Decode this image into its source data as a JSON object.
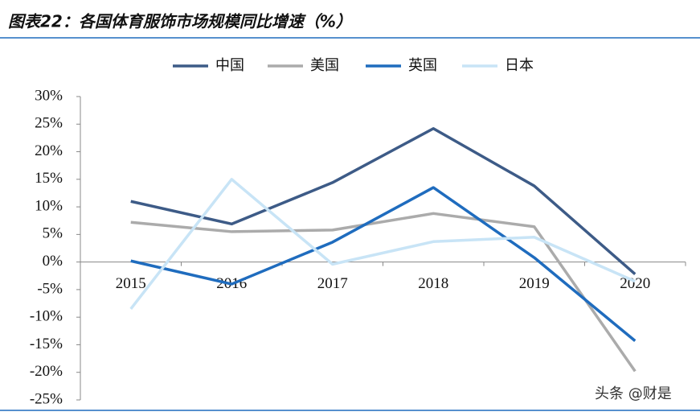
{
  "chart_data": {
    "type": "line",
    "title": "图表22：各国体育服饰市场规模同比增速（%）",
    "categories": [
      "2015",
      "2016",
      "2017",
      "2018",
      "2019",
      "2020"
    ],
    "series": [
      {
        "name": "中国",
        "color": "#3d5b87",
        "values": [
          11.0,
          6.9,
          14.4,
          24.2,
          13.8,
          -2.2
        ]
      },
      {
        "name": "美国",
        "color": "#ababab",
        "values": [
          7.2,
          5.5,
          5.8,
          8.8,
          6.4,
          -19.8
        ]
      },
      {
        "name": "英国",
        "color": "#1f6cbe",
        "values": [
          0.2,
          -4.0,
          3.6,
          13.5,
          0.8,
          -14.3
        ]
      },
      {
        "name": "日本",
        "color": "#c8e4f6",
        "values": [
          -8.5,
          15.0,
          -0.4,
          3.7,
          4.5,
          -3.5
        ]
      }
    ],
    "ylim": [
      -25,
      30
    ],
    "yticks": [
      {
        "value": -25,
        "label": "-25%"
      },
      {
        "value": -20,
        "label": "-20%"
      },
      {
        "value": -15,
        "label": "-15%"
      },
      {
        "value": -10,
        "label": "-10%"
      },
      {
        "value": -5,
        "label": "-5%"
      },
      {
        "value": 0,
        "label": "0%"
      },
      {
        "value": 5,
        "label": "5%"
      },
      {
        "value": 10,
        "label": "10%"
      },
      {
        "value": 15,
        "label": "15%"
      },
      {
        "value": 20,
        "label": "20%"
      },
      {
        "value": 25,
        "label": "25%"
      },
      {
        "value": 30,
        "label": "30%"
      }
    ],
    "legend": "top",
    "watermark": "头条 @财是"
  }
}
